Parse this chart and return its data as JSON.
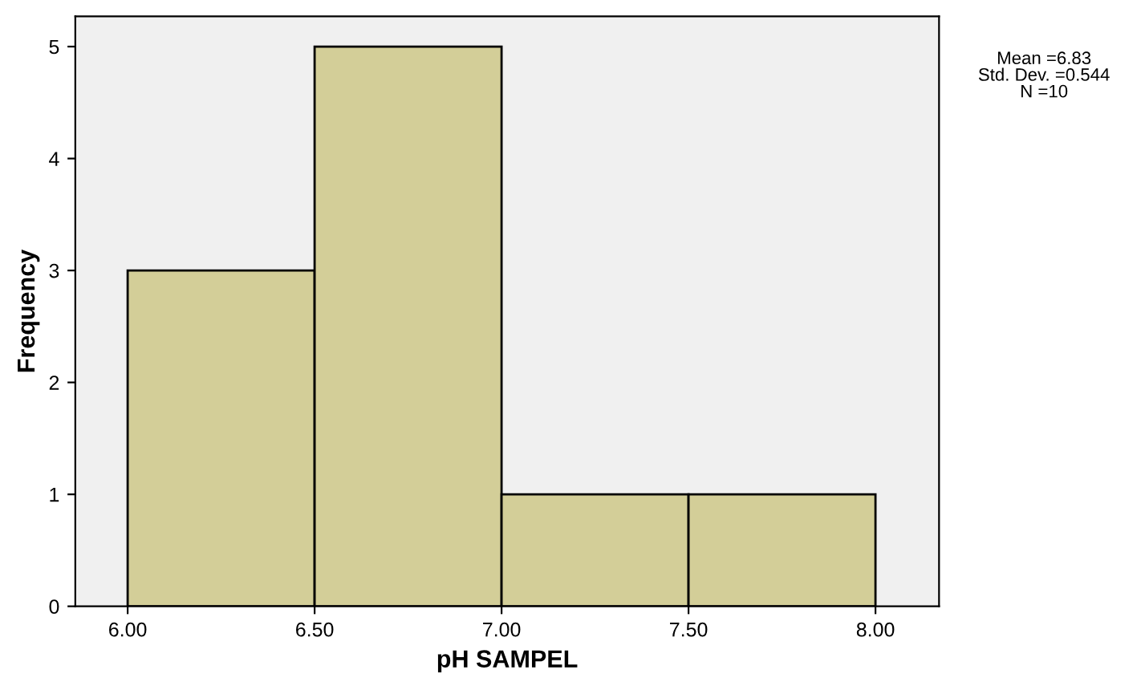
{
  "chart_data": {
    "type": "histogram",
    "xlabel": "pH SAMPEL",
    "ylabel": "Frequency",
    "bins": [
      6.0,
      6.5,
      7.0,
      7.5,
      8.0
    ],
    "values": [
      3,
      5,
      1,
      1
    ],
    "color": "#d3ce98",
    "xlim": [
      5.86,
      8.17
    ],
    "ylim": [
      0,
      5.27
    ],
    "xticks": [
      {
        "value": 6.0,
        "label": "6.00"
      },
      {
        "value": 6.5,
        "label": "6.50"
      },
      {
        "value": 7.0,
        "label": "7.00"
      },
      {
        "value": 7.5,
        "label": "7.50"
      },
      {
        "value": 8.0,
        "label": "8.00"
      }
    ],
    "yticks": [
      0,
      1,
      2,
      3,
      4,
      5
    ],
    "grid": false,
    "annotations": [
      "Mean =6.83\nStd. Dev. =0.544\nN =10"
    ]
  }
}
